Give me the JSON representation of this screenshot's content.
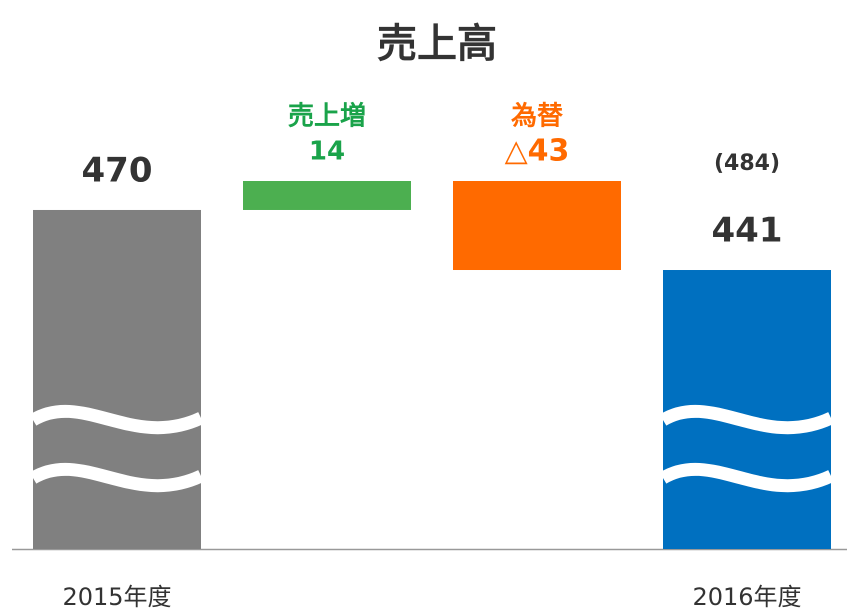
{
  "chart_data": {
    "type": "waterfall",
    "title": "売上高",
    "categories": [
      "2015年度",
      "売上増",
      "為替",
      "2016年度"
    ],
    "values": [
      470,
      14,
      -43,
      441
    ],
    "value_labels": [
      "470",
      "14",
      "△43",
      "441"
    ],
    "colors": [
      "#808080",
      "#4caf50",
      "#ff6a00",
      "#0070c0"
    ],
    "label_colors": [
      "#333333",
      "#1aa34a",
      "#ff6a00",
      "#333333"
    ],
    "annotation": {
      "value": 484,
      "label": "(484)"
    },
    "axis_break": true
  }
}
